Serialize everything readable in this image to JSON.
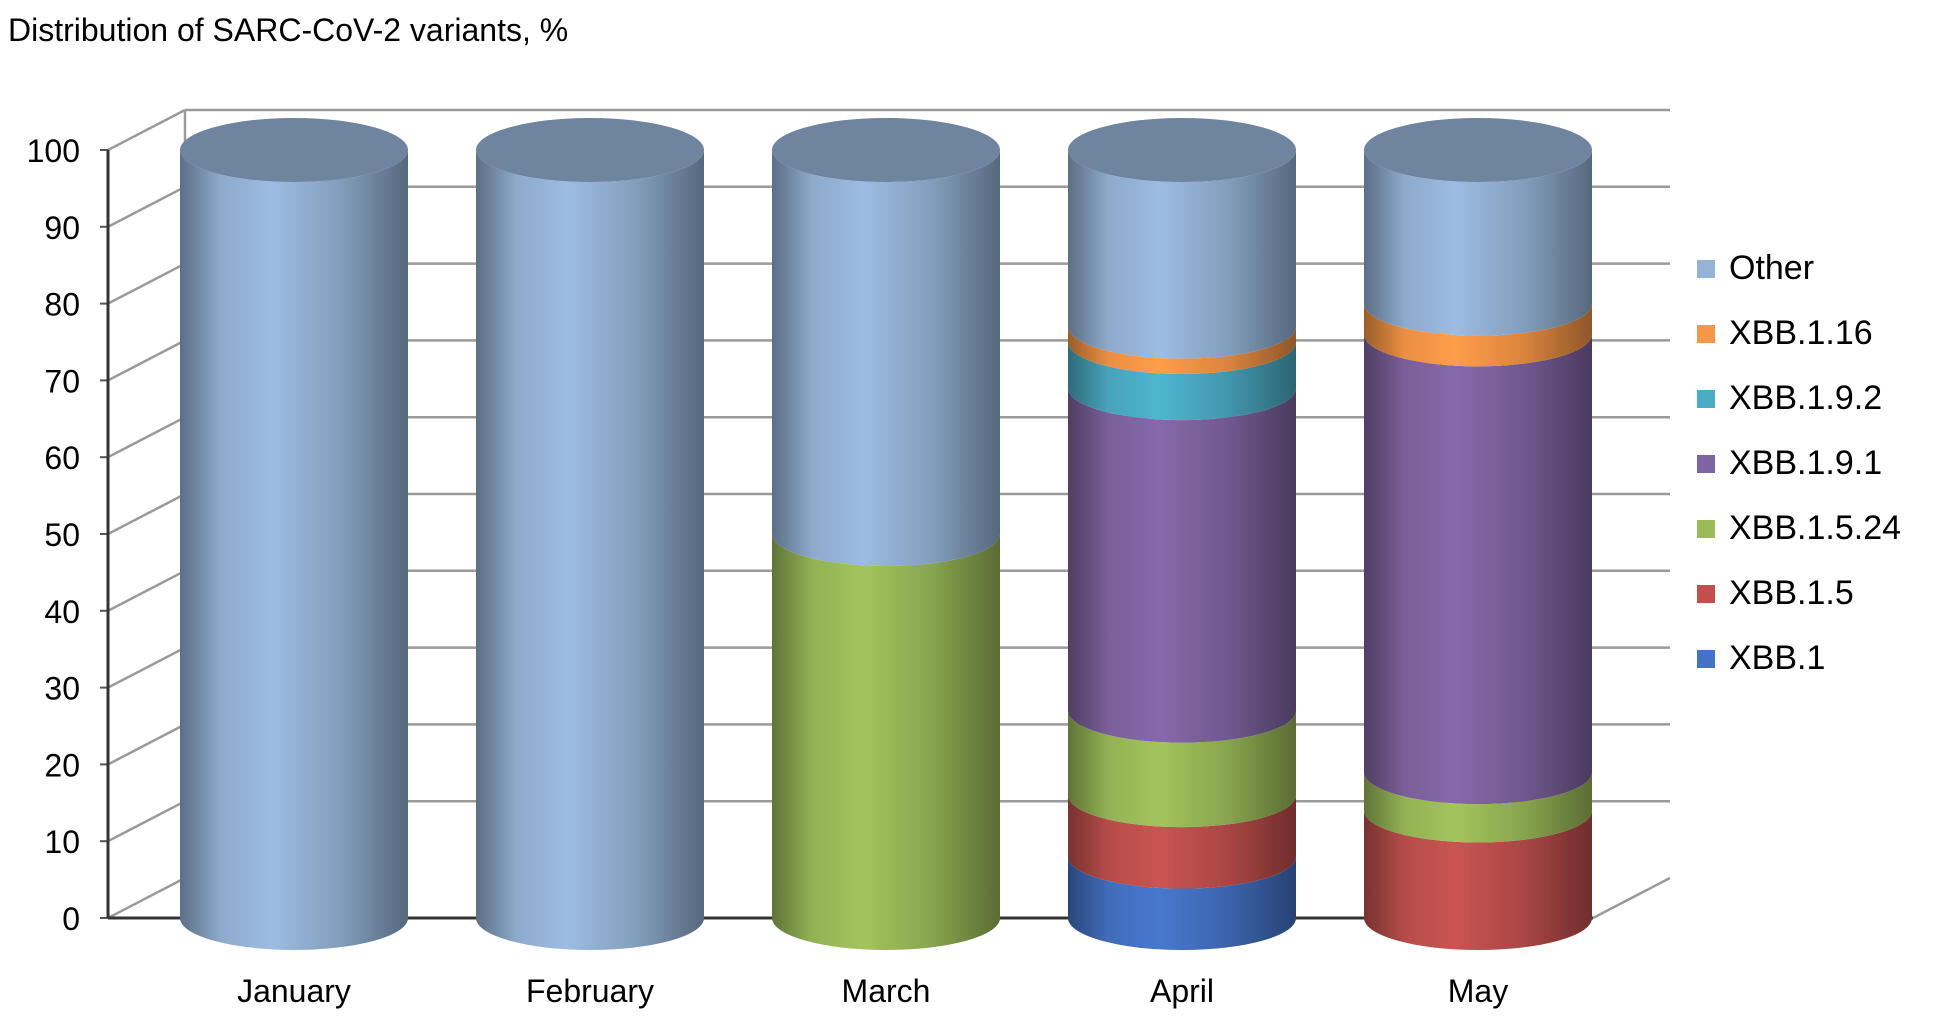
{
  "chart_data": {
    "type": "bar",
    "stacked": true,
    "style": "3d-cylinder",
    "title": "Distribution of SARC-CoV-2 variants, %",
    "xlabel": "",
    "ylabel": "",
    "ylim": [
      0,
      100
    ],
    "yticks": [
      "0",
      "10",
      "20",
      "30",
      "40",
      "50",
      "60",
      "70",
      "80",
      "90",
      "100"
    ],
    "categories": [
      "January",
      "February",
      "March",
      "April",
      "May"
    ],
    "series": [
      {
        "name": "XBB.1",
        "color": "#4472c4",
        "values": [
          0,
          0,
          0,
          8,
          0
        ]
      },
      {
        "name": "XBB.1.5",
        "color": "#c0504d",
        "values": [
          0,
          0,
          0,
          8,
          14
        ]
      },
      {
        "name": "XBB.1.5.24",
        "color": "#9bbb59",
        "values": [
          0,
          0,
          50,
          11,
          5
        ]
      },
      {
        "name": "XBB.1.9.1",
        "color": "#8064a2",
        "values": [
          0,
          0,
          0,
          42,
          57
        ]
      },
      {
        "name": "XBB.1.9.2",
        "color": "#4bacc6",
        "values": [
          0,
          0,
          0,
          6,
          0
        ]
      },
      {
        "name": "XBB.1.16",
        "color": "#f79646",
        "values": [
          0,
          0,
          0,
          2,
          4
        ]
      },
      {
        "name": "Other",
        "color": "#95b3d7",
        "values": [
          100,
          100,
          50,
          23,
          20
        ]
      }
    ],
    "grid": true,
    "legend_position": "right"
  }
}
